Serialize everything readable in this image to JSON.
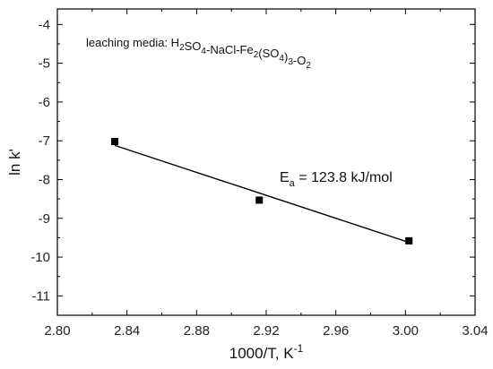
{
  "chart_data": {
    "type": "scatter",
    "xlabel": "1000/T, K",
    "xlabel_exponent": "-1",
    "ylabel": "ln k'",
    "xlim": [
      2.8,
      3.04
    ],
    "ylim": [
      -11.5,
      -3.6
    ],
    "xticks": [
      2.8,
      2.84,
      2.88,
      2.92,
      2.96,
      3.0,
      3.04
    ],
    "xtick_labels": [
      "2.80",
      "2.84",
      "2.88",
      "2.92",
      "2.96",
      "3.00",
      "3.04"
    ],
    "yticks": [
      -4,
      -5,
      -6,
      -7,
      -8,
      -9,
      -10,
      -11
    ],
    "ytick_labels": [
      "-4",
      "-5",
      "-6",
      "-7",
      "-8",
      "-9",
      "-10",
      "-11"
    ],
    "grid": false,
    "series": [
      {
        "marker": "square",
        "color": "#000000",
        "x": [
          2.833,
          2.916,
          3.002
        ],
        "y": [
          -7.02,
          -8.53,
          -9.58
        ]
      }
    ],
    "fit_line": {
      "x": [
        2.833,
        3.002
      ],
      "y": [
        -7.12,
        -9.62
      ],
      "color": "#000000"
    },
    "annotations": {
      "media_label_prefix": "leaching media: H",
      "media_parts": [
        {
          "text": "2",
          "sub": true
        },
        {
          "text": "SO",
          "sub": false
        },
        {
          "text": "4",
          "sub": true
        },
        {
          "text": "-NaCl-Fe",
          "sub": false
        },
        {
          "text": "2",
          "sub": true
        },
        {
          "text": "(SO",
          "sub": false
        },
        {
          "text": "4",
          "sub": true
        },
        {
          "text": ")",
          "sub": false
        },
        {
          "text": "3",
          "sub": true
        },
        {
          "text": "-O",
          "sub": false
        },
        {
          "text": "2",
          "sub": true
        }
      ],
      "ea_symbol": "E",
      "ea_subscript": "a",
      "ea_value": " = 123.8 kJ/mol"
    }
  }
}
